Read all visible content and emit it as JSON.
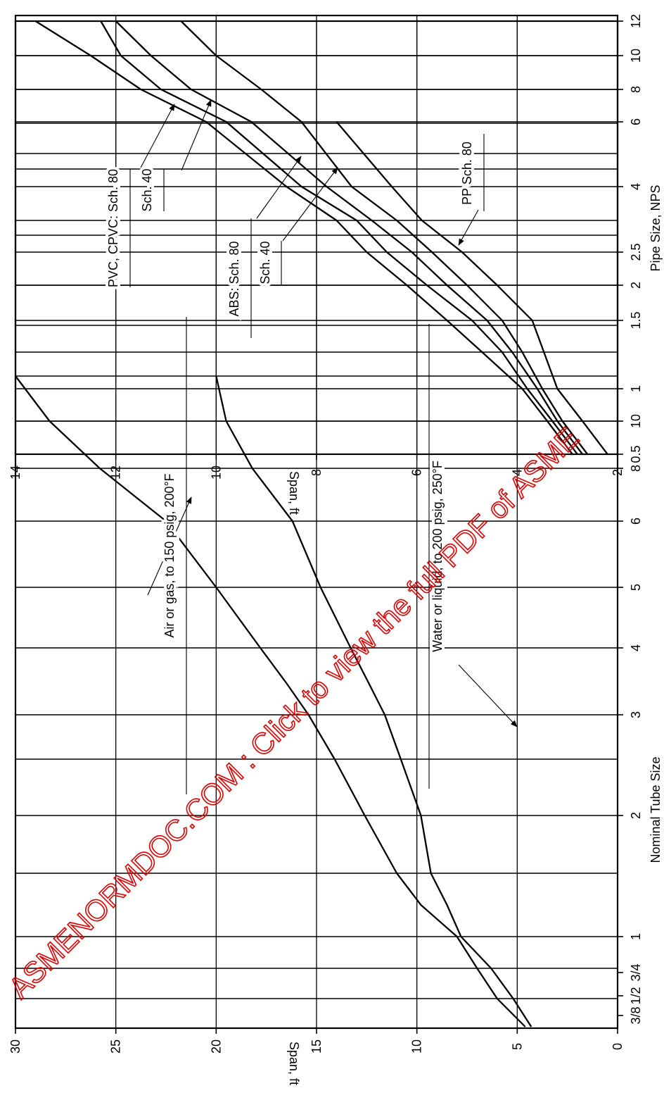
{
  "watermark": {
    "text": "ASMENORMDOC.COM : Click to view the full PDF of ASME",
    "color": "#e00000"
  },
  "chart_data": [
    {
      "id": "tube",
      "type": "line",
      "x_title": "Nominal Tube Size",
      "y_title": "Span, ft",
      "x_ticks": [
        "3/8",
        "1/2",
        "3/4",
        "1",
        "2",
        "3",
        "4",
        "5",
        "6",
        "8",
        "10"
      ],
      "y_ticks": [
        "0",
        "5",
        "10",
        "15",
        "20",
        "25",
        "30"
      ],
      "ylim": [
        0,
        30
      ],
      "grid": true,
      "series": [
        {
          "name": "Air or gas, to 150 psig, 200°F",
          "x": [
            "3/8",
            "1/2",
            "3/4",
            "1",
            "1 1/4",
            "1 1/2",
            "2",
            "2 1/2",
            "3",
            "3 1/2",
            "4",
            "5",
            "6",
            "8",
            "10",
            "12"
          ],
          "values": [
            4.6,
            6,
            7,
            8,
            9.8,
            11,
            12.6,
            14.1,
            15.4,
            16.5,
            17.8,
            20,
            22.5,
            25.8,
            28.3,
            30
          ]
        },
        {
          "name": "Water or liquid, to 200 psig, 250°F",
          "x": [
            "3/8",
            "1/2",
            "3/4",
            "1",
            "1 1/4",
            "1 1/2",
            "2",
            "2 1/2",
            "3",
            "3 1/2",
            "4",
            "5",
            "6",
            "8",
            "10",
            "12"
          ],
          "values": [
            4.3,
            5.2,
            6.3,
            7.8,
            8.5,
            9.3,
            9.8,
            10.8,
            11.6,
            12.4,
            13.3,
            14.8,
            16.2,
            18.2,
            19.5,
            20
          ]
        }
      ],
      "annotations": [
        {
          "text": "Air or gas, to 150 psig, 200°F",
          "series": 0
        },
        {
          "text": "Water or liquid, to 200 psig, 250°F",
          "series": 1
        }
      ]
    },
    {
      "id": "pipe",
      "type": "line",
      "x_title": "Pipe Size, NPS",
      "y_title": "Span, ft",
      "x_ticks": [
        "0.5",
        "1",
        "1.5",
        "2",
        "2.5",
        "4",
        "6",
        "8",
        "10",
        "12"
      ],
      "y_ticks": [
        "2",
        "4",
        "6",
        "8",
        "10",
        "12",
        "14"
      ],
      "ylim": [
        2,
        14
      ],
      "grid": true,
      "series": [
        {
          "name": "PVC, CPVC: Sch. 80",
          "x": [
            "0.5",
            "0.75",
            "1",
            "1.25",
            "1.5",
            "2",
            "2.5",
            "3",
            "4",
            "6",
            "8",
            "10",
            "12"
          ],
          "values": [
            2.9,
            3.4,
            3.9,
            4.7,
            5.4,
            6.2,
            7,
            7.6,
            8.6,
            10.2,
            11.5,
            12.5,
            13.6
          ]
        },
        {
          "name": "Sch. 40",
          "x": [
            "0.5",
            "0.75",
            "1",
            "1.25",
            "1.5",
            "2",
            "2.5",
            "3",
            "4",
            "6",
            "8",
            "10",
            "12"
          ],
          "values": [
            2.8,
            3.3,
            3.8,
            4.3,
            4.9,
            5.8,
            6.6,
            7.2,
            8.3,
            9.8,
            11.1,
            11.9,
            12.3
          ]
        },
        {
          "name": "ABS: Sch. 80",
          "x": [
            "0.5",
            "0.75",
            "1",
            "1.25",
            "1.5",
            "2",
            "2.5",
            "3",
            "4",
            "6",
            "8",
            "10",
            "12"
          ],
          "values": [
            2.7,
            3.2,
            3.6,
            4.1,
            4.6,
            5.4,
            6.1,
            6.9,
            7.8,
            9.3,
            10.5,
            11.3,
            12
          ]
        },
        {
          "name": "Sch. 40",
          "x": [
            "0.5",
            "0.75",
            "1",
            "1.25",
            "1.5",
            "2",
            "2.5",
            "3",
            "4",
            "6",
            "8",
            "10",
            "12"
          ],
          "values": [
            2.6,
            3.1,
            3.5,
            3.9,
            4.3,
            5,
            5.7,
            6.4,
            7.3,
            8.3,
            9.1,
            10,
            10.7
          ]
        },
        {
          "name": "PP Sch. 80",
          "x": [
            "0.5",
            "0.75",
            "1",
            "1.5",
            "2",
            "2.5",
            "3",
            "4",
            "6"
          ],
          "values": [
            2.2,
            2.7,
            3.2,
            3.7,
            4.4,
            5.1,
            5.9,
            6.5,
            7.6
          ]
        }
      ],
      "annotations": [
        {
          "text": "PVC, CPVC: Sch. 80",
          "series": 0
        },
        {
          "text": "Sch. 40",
          "series": 1
        },
        {
          "text": "ABS: Sch. 80",
          "series": 2
        },
        {
          "text": "Sch. 40",
          "series": 3
        },
        {
          "text": "PP Sch. 80",
          "series": 4
        }
      ]
    }
  ]
}
